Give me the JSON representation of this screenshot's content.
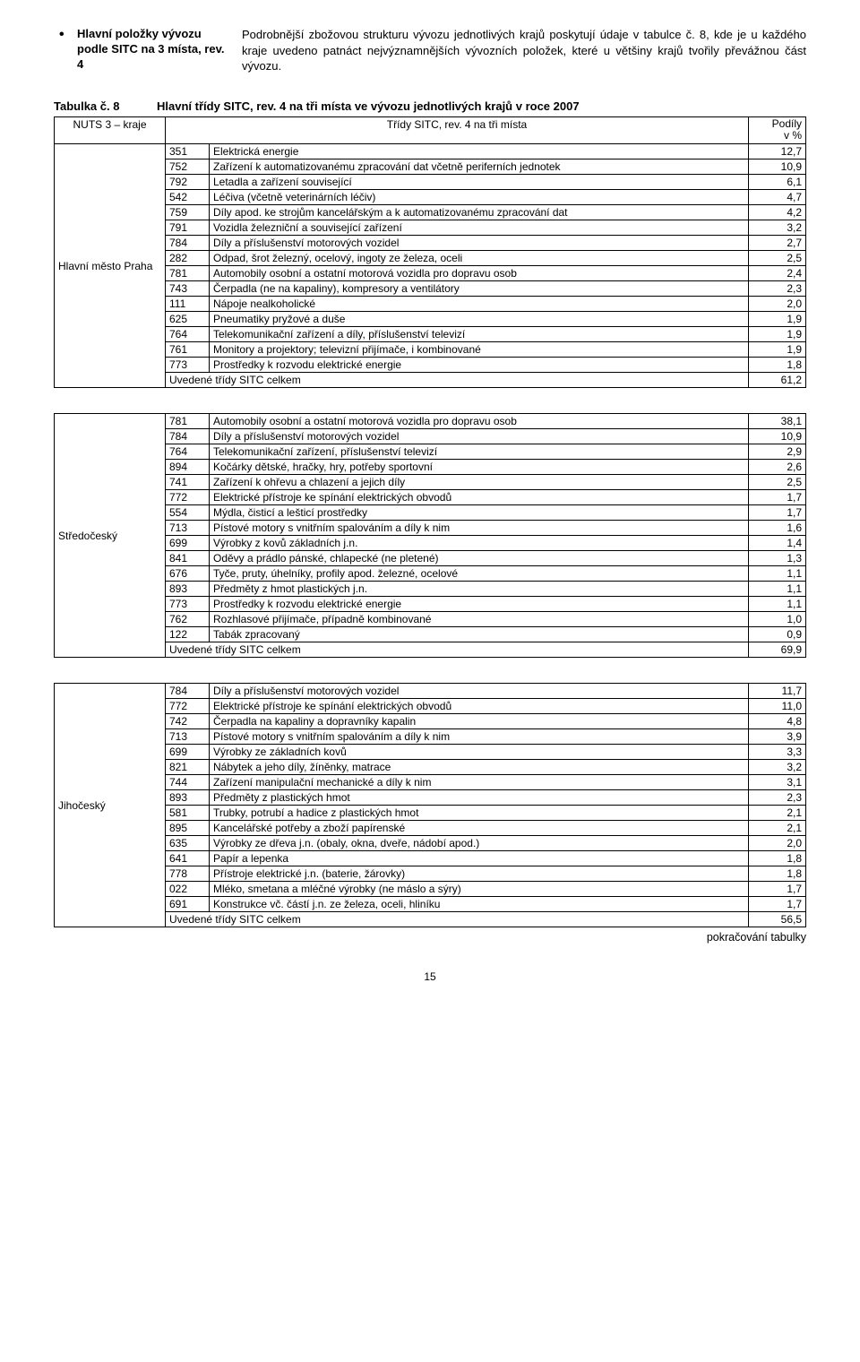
{
  "topLeft": {
    "bullet": "Hlavní položky vývozu podle SITC na 3 místa, rev. 4"
  },
  "topRight": "Podrobnější zbožovou strukturu vývozu jednotlivých krajů poskytují údaje v tabulce č. 8, kde je u každého kraje uvedeno patnáct nejvýznamnějších vývozních položek, které u většiny krajů tvořily převážnou část vývozu.",
  "tableTitle": {
    "left": "Tabulka č. 8",
    "right": "Hlavní třídy SITC, rev. 4 na tři místa ve vývozu jednotlivých krajů v roce 2007"
  },
  "header": {
    "nuts": "NUTS 3 – kraje",
    "sitc": "Třídy SITC, rev. 4 na tři místa",
    "podily1": "Podíly",
    "podily2": "v %"
  },
  "totalLabel": "Uvedené třídy SITC celkem",
  "continuation": "pokračování tabulky",
  "pageNumber": "15",
  "tables": [
    {
      "region": "Hlavní město Praha",
      "rows": [
        {
          "code": "351",
          "desc": "Elektrická energie",
          "val": "12,7"
        },
        {
          "code": "752",
          "desc": "Zařízení k automatizovanému zpracování dat včetně periferních jednotek",
          "val": "10,9"
        },
        {
          "code": "792",
          "desc": "Letadla a zařízení související",
          "val": "6,1"
        },
        {
          "code": "542",
          "desc": "Léčiva (včetně veterinárních léčiv)",
          "val": "4,7"
        },
        {
          "code": "759",
          "desc": "Díly apod. ke strojům kancelářským a k automatizovanému zpracování dat",
          "val": "4,2"
        },
        {
          "code": "791",
          "desc": "Vozidla železniční a související zařízení",
          "val": "3,2"
        },
        {
          "code": "784",
          "desc": "Díly a příslušenství motorových vozidel",
          "val": "2,7"
        },
        {
          "code": "282",
          "desc": "Odpad, šrot železný, ocelový, ingoty ze železa, oceli",
          "val": "2,5"
        },
        {
          "code": "781",
          "desc": "Automobily osobní a ostatní motorová vozidla pro dopravu osob",
          "val": "2,4"
        },
        {
          "code": "743",
          "desc": "Čerpadla (ne na kapaliny), kompresory a ventilátory",
          "val": "2,3"
        },
        {
          "code": "111",
          "desc": "Nápoje nealkoholické",
          "val": "2,0"
        },
        {
          "code": "625",
          "desc": "Pneumatiky pryžové a duše",
          "val": "1,9"
        },
        {
          "code": "764",
          "desc": "Telekomunikační zařízení a díly, příslušenství televizí",
          "val": "1,9"
        },
        {
          "code": "761",
          "desc": "Monitory a projektory; televizní přijímače, i kombinované",
          "val": "1,9"
        },
        {
          "code": "773",
          "desc": "Prostředky k rozvodu elektrické energie",
          "val": "1,8"
        }
      ],
      "total": "61,2"
    },
    {
      "region": "Středočeský",
      "rows": [
        {
          "code": "781",
          "desc": "Automobily osobní a ostatní motorová vozidla pro dopravu osob",
          "val": "38,1"
        },
        {
          "code": "784",
          "desc": "Díly a příslušenství motorových vozidel",
          "val": "10,9"
        },
        {
          "code": "764",
          "desc": "Telekomunikační zařízení, příslušenství televizí",
          "val": "2,9"
        },
        {
          "code": "894",
          "desc": "Kočárky dětské, hračky, hry, potřeby sportovní",
          "val": "2,6"
        },
        {
          "code": "741",
          "desc": "Zařízení k ohřevu a chlazení a jejich díly",
          "val": "2,5"
        },
        {
          "code": "772",
          "desc": "Elektrické přístroje ke spínání elektrických obvodů",
          "val": "1,7"
        },
        {
          "code": "554",
          "desc": "Mýdla, čisticí a lešticí prostředky",
          "val": "1,7"
        },
        {
          "code": "713",
          "desc": "Pístové motory s vnitřním spalováním a díly k nim",
          "val": "1,6"
        },
        {
          "code": "699",
          "desc": "Výrobky z kovů základních j.n.",
          "val": "1,4"
        },
        {
          "code": "841",
          "desc": "Oděvy a prádlo pánské, chlapecké (ne pletené)",
          "val": "1,3"
        },
        {
          "code": "676",
          "desc": "Tyče, pruty, úhelníky, profily apod. železné, ocelové",
          "val": "1,1"
        },
        {
          "code": "893",
          "desc": "Předměty z hmot plastických j.n.",
          "val": "1,1"
        },
        {
          "code": "773",
          "desc": "Prostředky k rozvodu elektrické energie",
          "val": "1,1"
        },
        {
          "code": "762",
          "desc": "Rozhlasové přijímače, případně kombinované",
          "val": "1,0"
        },
        {
          "code": "122",
          "desc": "Tabák zpracovaný",
          "val": "0,9"
        }
      ],
      "total": "69,9"
    },
    {
      "region": "Jihočeský",
      "rows": [
        {
          "code": "784",
          "desc": "Díly a příslušenství motorových vozidel",
          "val": "11,7"
        },
        {
          "code": "772",
          "desc": "Elektrické přístroje ke spínání elektrických obvodů",
          "val": "11,0"
        },
        {
          "code": "742",
          "desc": "Čerpadla na kapaliny a dopravníky kapalin",
          "val": "4,8"
        },
        {
          "code": "713",
          "desc": "Pístové motory s vnitřním spalováním a díly k nim",
          "val": "3,9"
        },
        {
          "code": "699",
          "desc": "Výrobky ze základních kovů",
          "val": "3,3"
        },
        {
          "code": "821",
          "desc": "Nábytek a jeho díly, žíněnky, matrace",
          "val": "3,2"
        },
        {
          "code": "744",
          "desc": "Zařízení manipulační mechanické a díly k nim",
          "val": "3,1"
        },
        {
          "code": "893",
          "desc": "Předměty z plastických hmot",
          "val": "2,3"
        },
        {
          "code": "581",
          "desc": "Trubky, potrubí a hadice z plastických hmot",
          "val": "2,1"
        },
        {
          "code": "895",
          "desc": "Kancelářské potřeby a zboží papírenské",
          "val": "2,1"
        },
        {
          "code": "635",
          "desc": "Výrobky ze dřeva j.n. (obaly, okna, dveře, nádobí apod.)",
          "val": "2,0"
        },
        {
          "code": "641",
          "desc": "Papír a lepenka",
          "val": "1,8"
        },
        {
          "code": "778",
          "desc": "Přístroje elektrické j.n. (baterie, žárovky)",
          "val": "1,8"
        },
        {
          "code": "022",
          "desc": "Mléko, smetana a mléčné výrobky (ne máslo a sýry)",
          "val": "1,7"
        },
        {
          "code": "691",
          "desc": "Konstrukce vč. částí j.n. ze železa, oceli, hliníku",
          "val": "1,7"
        }
      ],
      "total": "56,5"
    }
  ]
}
